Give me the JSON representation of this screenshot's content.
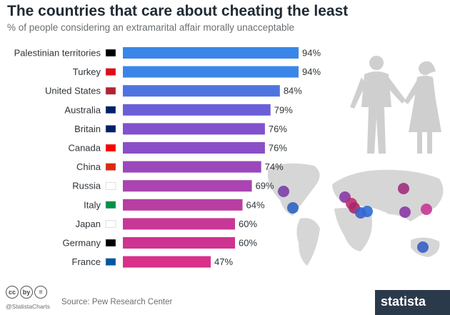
{
  "header": {
    "title": "The countries that care about cheating the least",
    "subtitle": "% of people considering an extramarital affair morally unacceptable"
  },
  "chart_data": {
    "type": "bar",
    "orientation": "horizontal",
    "categories": [
      "Palestinian territories",
      "Turkey",
      "United States",
      "Australia",
      "Britain",
      "Canada",
      "China",
      "Russia",
      "Italy",
      "Japan",
      "Germany",
      "France"
    ],
    "values": [
      94,
      94,
      84,
      79,
      76,
      76,
      74,
      69,
      64,
      60,
      60,
      47
    ],
    "value_labels": [
      "94%",
      "94%",
      "84%",
      "79%",
      "76%",
      "76%",
      "74%",
      "69%",
      "64%",
      "60%",
      "60%",
      "47%"
    ],
    "bar_colors": [
      "#3a86e8",
      "#3a86e8",
      "#4e74e0",
      "#6a5fd8",
      "#8052cc",
      "#8a4ec6",
      "#9a48bc",
      "#a944b0",
      "#b83ea2",
      "#c73896",
      "#cf3390",
      "#d9308a"
    ],
    "xlim": [
      0,
      100
    ],
    "grid": false,
    "legend": "none"
  },
  "footer": {
    "handle": "@StatistaCharts",
    "source": "Source: Pew Research Center",
    "brand": "statista",
    "license_icons": [
      "cc",
      "by",
      "="
    ]
  }
}
